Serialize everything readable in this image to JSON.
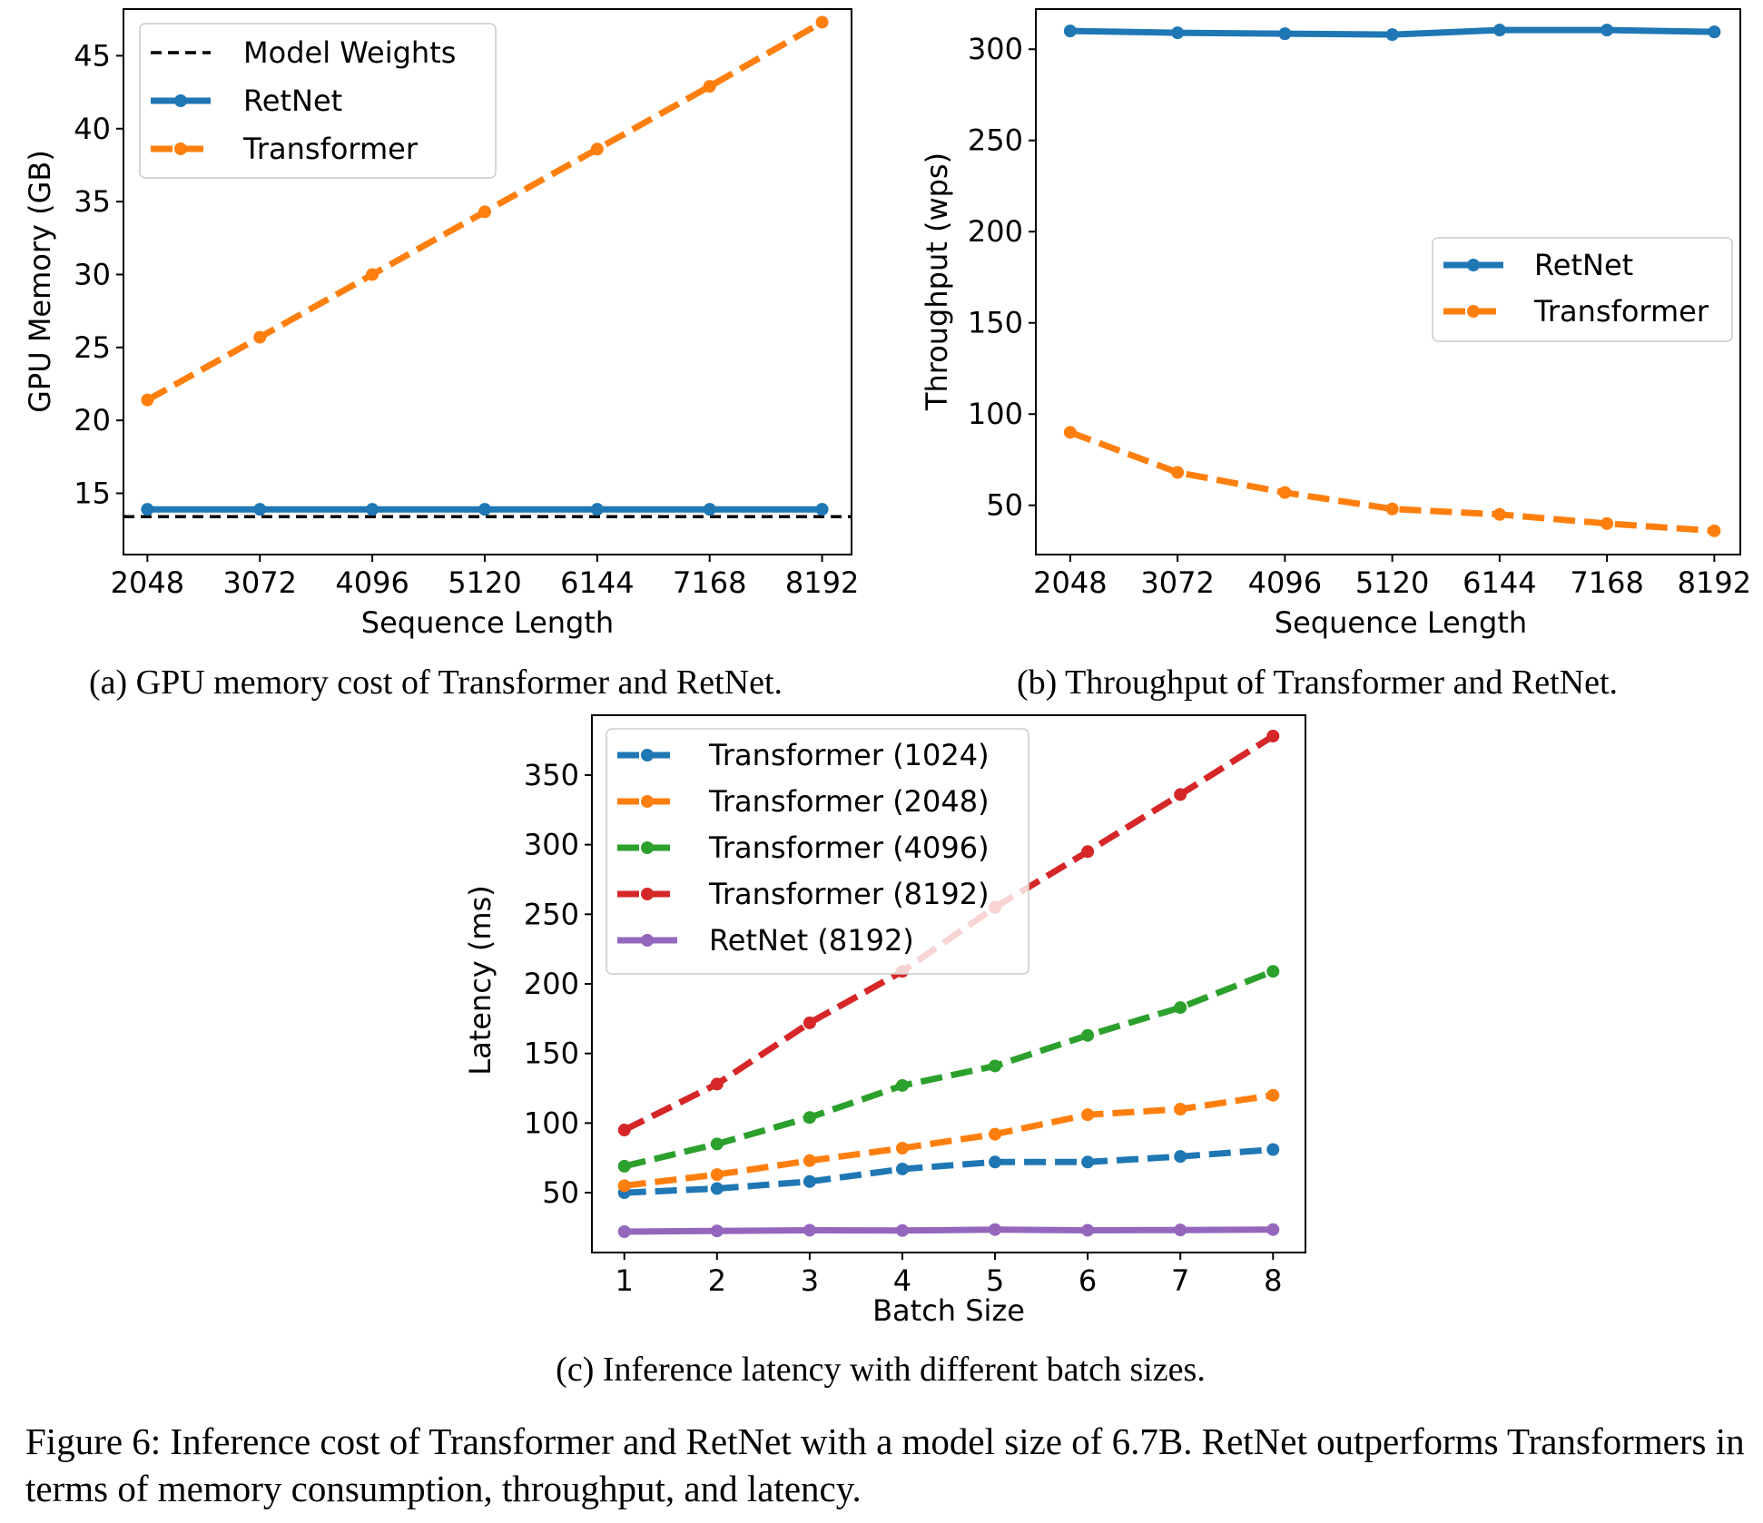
{
  "figure_caption": "Figure 6: Inference cost of Transformer and RetNet with a model size of 6.7B. RetNet outperforms Transformers in terms of memory consumption, throughput, and latency.",
  "colors": {
    "blue": "#1f77b4",
    "orange": "#ff7f0e",
    "green": "#2ca02c",
    "red": "#d62728",
    "purple": "#9467bd",
    "black": "#000000"
  },
  "chart_data": [
    {
      "id": "a",
      "type": "line",
      "caption": "(a) GPU memory cost of Transformer and RetNet.",
      "xlabel": "Sequence Length",
      "ylabel": "GPU Memory (GB)",
      "x": [
        2048,
        3072,
        4096,
        5120,
        6144,
        7168,
        8192
      ],
      "xlim": [
        1830,
        8460
      ],
      "ylim": [
        10.8,
        48.2
      ],
      "yticks": [
        15,
        20,
        25,
        30,
        35,
        40,
        45
      ],
      "hlines": [
        {
          "name": "Model Weights",
          "y": 13.4,
          "color": "#000000",
          "style": "dashed"
        }
      ],
      "series": [
        {
          "name": "RetNet",
          "color": "#1f77b4",
          "style": "solid",
          "values": [
            13.9,
            13.9,
            13.9,
            13.9,
            13.9,
            13.9,
            13.9
          ]
        },
        {
          "name": "Transformer",
          "color": "#ff7f0e",
          "style": "dashed",
          "values": [
            21.4,
            25.7,
            30.0,
            34.3,
            38.6,
            42.9,
            47.3
          ]
        }
      ],
      "legend": "top-left",
      "grid": false
    },
    {
      "id": "b",
      "type": "line",
      "caption": "(b) Throughput of Transformer and RetNet.",
      "xlabel": "Sequence Length",
      "ylabel": "Throughput (wps)",
      "x": [
        2048,
        3072,
        4096,
        5120,
        6144,
        7168,
        8192
      ],
      "xlim": [
        1720,
        8440
      ],
      "ylim": [
        23,
        322
      ],
      "yticks": [
        50,
        100,
        150,
        200,
        250,
        300
      ],
      "series": [
        {
          "name": "RetNet",
          "color": "#1f77b4",
          "style": "solid",
          "values": [
            310,
            309,
            308.5,
            308,
            310.5,
            310.5,
            309.5
          ]
        },
        {
          "name": "Transformer",
          "color": "#ff7f0e",
          "style": "dashed",
          "values": [
            90,
            68,
            57,
            48,
            45,
            40,
            36
          ]
        }
      ],
      "legend": "center-right",
      "grid": false
    },
    {
      "id": "c",
      "type": "line",
      "caption": "(c) Inference latency with different batch sizes.",
      "xlabel": "Batch Size",
      "ylabel": "Latency (ms)",
      "x": [
        1,
        2,
        3,
        4,
        5,
        6,
        7,
        8
      ],
      "xlim": [
        0.65,
        8.35
      ],
      "ylim": [
        7,
        393
      ],
      "yticks": [
        50,
        100,
        150,
        200,
        250,
        300,
        350
      ],
      "series": [
        {
          "name": "Transformer (1024)",
          "color": "#1f77b4",
          "style": "dashed",
          "values": [
            50,
            53,
            58,
            67,
            72,
            72,
            76,
            81
          ]
        },
        {
          "name": "Transformer (2048)",
          "color": "#ff7f0e",
          "style": "dashed",
          "values": [
            55,
            63,
            73,
            82,
            92,
            106,
            110,
            120
          ]
        },
        {
          "name": "Transformer (4096)",
          "color": "#2ca02c",
          "style": "dashed",
          "values": [
            69,
            85,
            104,
            127,
            141,
            163,
            183,
            209
          ]
        },
        {
          "name": "Transformer (8192)",
          "color": "#d62728",
          "style": "dashed",
          "values": [
            95,
            128,
            172,
            209,
            255,
            295,
            336,
            378
          ]
        },
        {
          "name": "RetNet (8192)",
          "color": "#9467bd",
          "style": "solid",
          "values": [
            22,
            22.5,
            23,
            22.8,
            23.5,
            23,
            23.2,
            23.5
          ]
        }
      ],
      "legend": "top-left",
      "grid": false
    }
  ]
}
